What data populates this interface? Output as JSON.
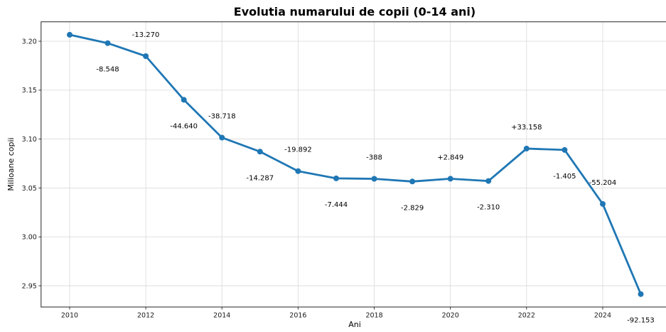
{
  "chart_data": {
    "type": "line",
    "title": "Evolutia numarului de copii (0-14 ani)",
    "xlabel": "Ani",
    "ylabel": "Milioane copii",
    "x": [
      2010,
      2011,
      2012,
      2013,
      2014,
      2015,
      2016,
      2017,
      2018,
      2019,
      2020,
      2021,
      2022,
      2023,
      2024,
      2025
    ],
    "values": [
      3.2066,
      3.198052,
      3.184782,
      3.140142,
      3.101424,
      3.087137,
      3.067245,
      3.059801,
      3.059413,
      3.056584,
      3.059433,
      3.057123,
      3.090281,
      3.088876,
      3.033672,
      2.941519
    ],
    "annotations": [
      {
        "x": 2011,
        "label": "-8.548",
        "placement": "below"
      },
      {
        "x": 2012,
        "label": "-13.270",
        "placement": "above"
      },
      {
        "x": 2013,
        "label": "-44.640",
        "placement": "below"
      },
      {
        "x": 2014,
        "label": "-38.718",
        "placement": "above"
      },
      {
        "x": 2015,
        "label": "-14.287",
        "placement": "below"
      },
      {
        "x": 2016,
        "label": "-19.892",
        "placement": "above"
      },
      {
        "x": 2017,
        "label": "-7.444",
        "placement": "below"
      },
      {
        "x": 2018,
        "label": "-388",
        "placement": "above"
      },
      {
        "x": 2019,
        "label": "-2.829",
        "placement": "below"
      },
      {
        "x": 2020,
        "label": "+2.849",
        "placement": "above"
      },
      {
        "x": 2021,
        "label": "-2.310",
        "placement": "below"
      },
      {
        "x": 2022,
        "label": "+33.158",
        "placement": "above"
      },
      {
        "x": 2023,
        "label": "-1.405",
        "placement": "below"
      },
      {
        "x": 2024,
        "label": "-55.204",
        "placement": "above"
      },
      {
        "x": 2025,
        "label": "-92.153",
        "placement": "below"
      }
    ],
    "xticks": [
      2010,
      2012,
      2014,
      2016,
      2018,
      2020,
      2022,
      2024
    ],
    "xtick_labels": [
      "2010",
      "2012",
      "2014",
      "2016",
      "2018",
      "2020",
      "2022",
      "2024"
    ],
    "yticks": [
      2.95,
      3.0,
      3.05,
      3.1,
      3.15,
      3.2
    ],
    "ytick_labels": [
      "2.95",
      "3.00",
      "3.05",
      "3.10",
      "3.15",
      "3.20"
    ],
    "xlim": [
      2009.25,
      2025.75
    ],
    "ylim": [
      2.928265,
      3.219854
    ],
    "grid": true,
    "legend_position": "none",
    "line_color": "#1f77b4",
    "marker_color": "#1f77b4",
    "grid_color": "#dcdcdc"
  }
}
